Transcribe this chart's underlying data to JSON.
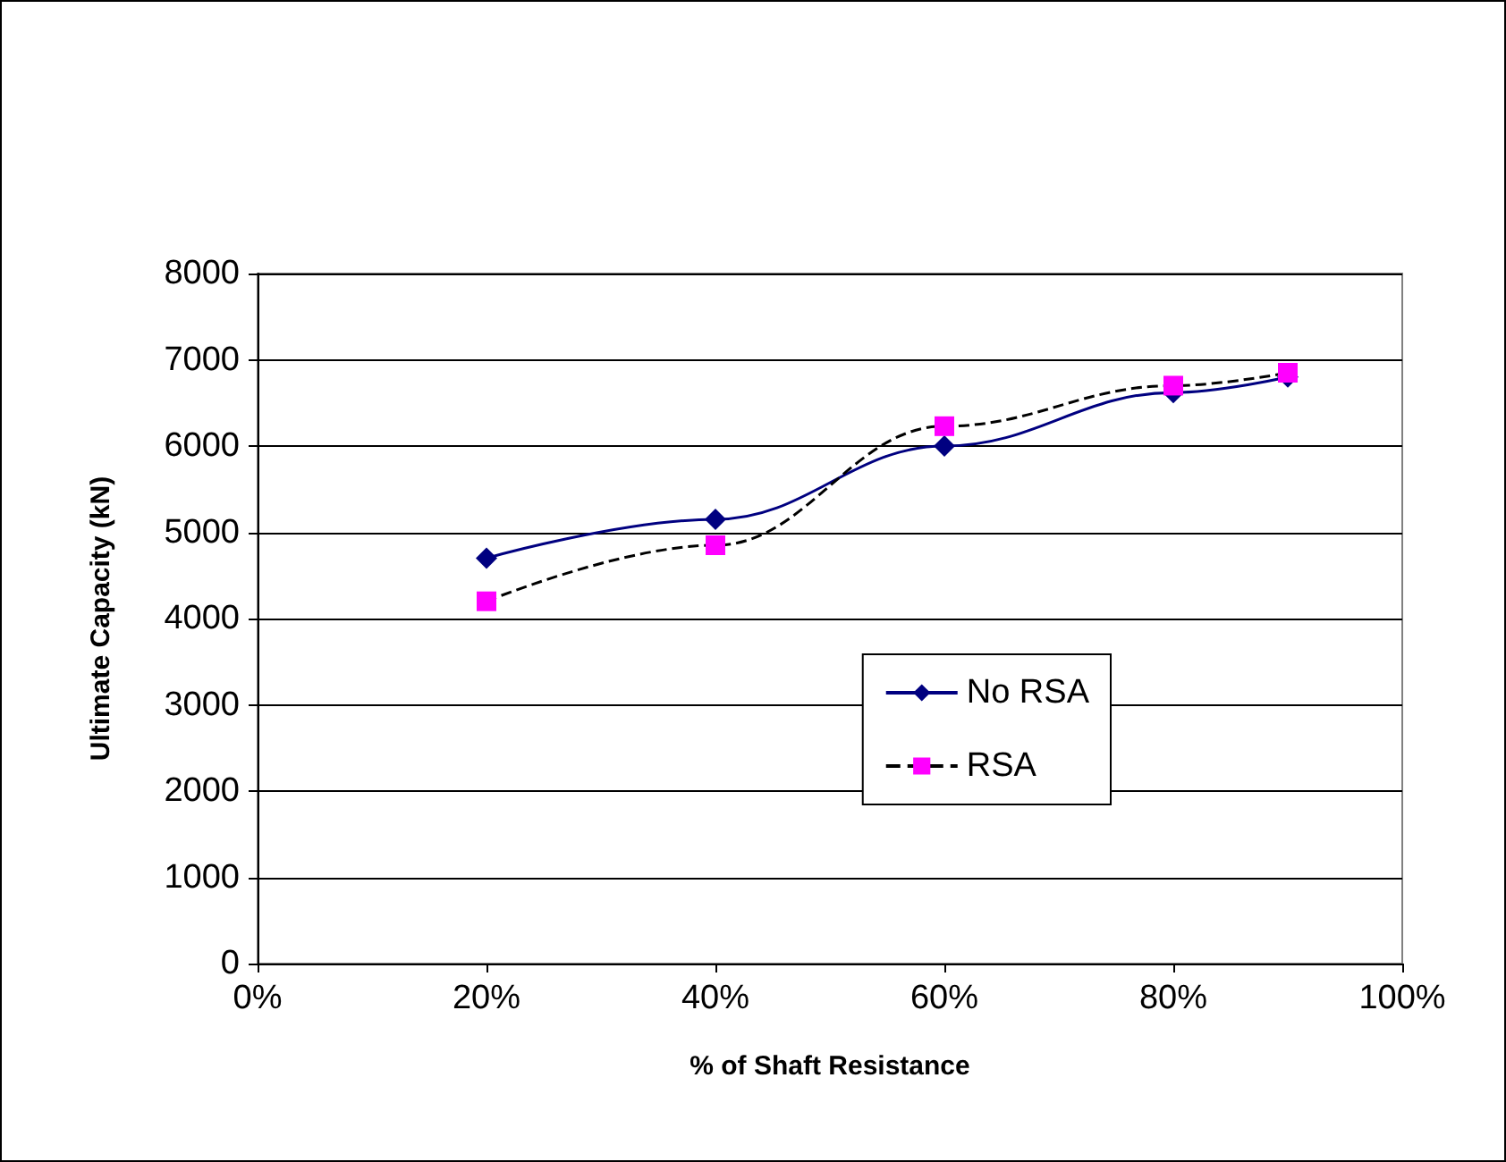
{
  "chart_data": {
    "type": "line",
    "xlabel": "% of Shaft Resistance",
    "ylabel": "Ultimate Capacity (kN)",
    "x": [
      0.2,
      0.4,
      0.6,
      0.8,
      0.9
    ],
    "series": [
      {
        "name": "No RSA",
        "color": "#000080",
        "values": [
          4700,
          5150,
          6000,
          6620,
          6800
        ],
        "marker": "diamond",
        "line_style": "solid"
      },
      {
        "name": "RSA",
        "color": "#ff00ff",
        "values": [
          4200,
          4850,
          6230,
          6700,
          6850
        ],
        "marker": "square",
        "line_style": "dashed"
      }
    ],
    "xlim": [
      0,
      1
    ],
    "xticks": [
      {
        "value": 0,
        "label": "0%"
      },
      {
        "value": 0.2,
        "label": "20%"
      },
      {
        "value": 0.4,
        "label": "40%"
      },
      {
        "value": 0.6,
        "label": "60%"
      },
      {
        "value": 0.8,
        "label": "80%"
      },
      {
        "value": 1,
        "label": "100%"
      }
    ],
    "ylim": [
      0,
      8000
    ],
    "yticks": [
      0,
      1000,
      2000,
      3000,
      4000,
      5000,
      6000,
      7000,
      8000
    ],
    "grid": "y",
    "legend": "center"
  }
}
